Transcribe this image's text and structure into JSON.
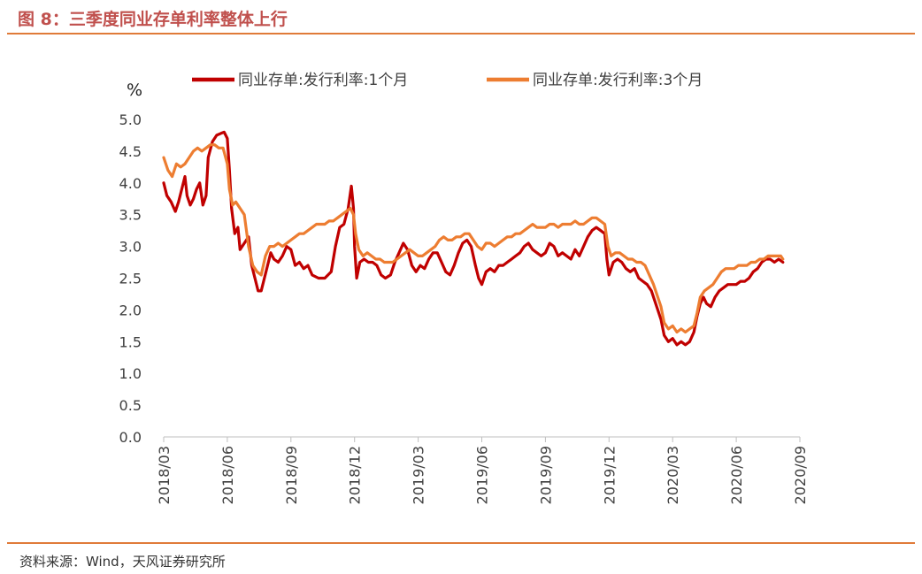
{
  "figure": {
    "title": "图 8：三季度同业存单利率整体上行",
    "source": "资料来源：Wind，天风证券研究所"
  },
  "chart_data": {
    "type": "line",
    "title": "三季度同业存单利率整体上行",
    "ylabel": "%",
    "xlabel": "",
    "ylim": [
      0,
      5
    ],
    "yticks": [
      "0.0",
      "0.5",
      "1.0",
      "1.5",
      "2.0",
      "2.5",
      "3.0",
      "3.5",
      "4.0",
      "4.5",
      "5.0"
    ],
    "xlim": [
      0,
      30
    ],
    "xticks": [
      "2018/03",
      "2018/06",
      "2018/09",
      "2018/12",
      "2019/03",
      "2019/06",
      "2019/09",
      "2019/12",
      "2020/03",
      "2020/06",
      "2020/09"
    ],
    "legend_position": "top",
    "series": [
      {
        "name": "同业存单:发行利率:1个月",
        "color": "#c00000",
        "points": [
          [
            0.0,
            4.0
          ],
          [
            0.15,
            3.8
          ],
          [
            0.35,
            3.7
          ],
          [
            0.55,
            3.55
          ],
          [
            0.7,
            3.7
          ],
          [
            0.85,
            3.9
          ],
          [
            1.0,
            4.1
          ],
          [
            1.1,
            3.8
          ],
          [
            1.25,
            3.65
          ],
          [
            1.4,
            3.75
          ],
          [
            1.55,
            3.9
          ],
          [
            1.7,
            4.0
          ],
          [
            1.85,
            3.65
          ],
          [
            2.0,
            3.8
          ],
          [
            2.1,
            4.4
          ],
          [
            2.3,
            4.65
          ],
          [
            2.5,
            4.75
          ],
          [
            2.7,
            4.78
          ],
          [
            2.85,
            4.8
          ],
          [
            3.0,
            4.7
          ],
          [
            3.1,
            4.2
          ],
          [
            3.2,
            3.6
          ],
          [
            3.35,
            3.2
          ],
          [
            3.5,
            3.3
          ],
          [
            3.6,
            2.95
          ],
          [
            3.8,
            3.05
          ],
          [
            4.0,
            3.15
          ],
          [
            4.15,
            2.7
          ],
          [
            4.3,
            2.5
          ],
          [
            4.45,
            2.3
          ],
          [
            4.6,
            2.3
          ],
          [
            4.75,
            2.5
          ],
          [
            4.9,
            2.7
          ],
          [
            5.05,
            2.9
          ],
          [
            5.2,
            2.8
          ],
          [
            5.4,
            2.75
          ],
          [
            5.6,
            2.85
          ],
          [
            5.8,
            3.0
          ],
          [
            6.0,
            2.95
          ],
          [
            6.2,
            2.7
          ],
          [
            6.4,
            2.75
          ],
          [
            6.6,
            2.65
          ],
          [
            6.8,
            2.7
          ],
          [
            7.0,
            2.55
          ],
          [
            7.3,
            2.5
          ],
          [
            7.6,
            2.5
          ],
          [
            7.9,
            2.6
          ],
          [
            8.1,
            3.0
          ],
          [
            8.3,
            3.3
          ],
          [
            8.5,
            3.35
          ],
          [
            8.7,
            3.6
          ],
          [
            8.85,
            3.95
          ],
          [
            8.95,
            3.6
          ],
          [
            9.0,
            3.0
          ],
          [
            9.1,
            2.5
          ],
          [
            9.25,
            2.75
          ],
          [
            9.45,
            2.8
          ],
          [
            9.65,
            2.75
          ],
          [
            9.85,
            2.75
          ],
          [
            10.05,
            2.7
          ],
          [
            10.25,
            2.55
          ],
          [
            10.45,
            2.5
          ],
          [
            10.7,
            2.55
          ],
          [
            10.9,
            2.75
          ],
          [
            11.1,
            2.9
          ],
          [
            11.3,
            3.05
          ],
          [
            11.5,
            2.95
          ],
          [
            11.7,
            2.7
          ],
          [
            11.9,
            2.6
          ],
          [
            12.1,
            2.7
          ],
          [
            12.3,
            2.65
          ],
          [
            12.5,
            2.8
          ],
          [
            12.7,
            2.9
          ],
          [
            12.9,
            2.9
          ],
          [
            13.1,
            2.75
          ],
          [
            13.3,
            2.6
          ],
          [
            13.5,
            2.55
          ],
          [
            13.7,
            2.7
          ],
          [
            13.9,
            2.9
          ],
          [
            14.1,
            3.05
          ],
          [
            14.3,
            3.1
          ],
          [
            14.5,
            3.0
          ],
          [
            14.7,
            2.7
          ],
          [
            14.85,
            2.5
          ],
          [
            15.0,
            2.4
          ],
          [
            15.2,
            2.6
          ],
          [
            15.4,
            2.65
          ],
          [
            15.6,
            2.6
          ],
          [
            15.8,
            2.7
          ],
          [
            16.0,
            2.7
          ],
          [
            16.2,
            2.75
          ],
          [
            16.4,
            2.8
          ],
          [
            16.6,
            2.85
          ],
          [
            16.8,
            2.9
          ],
          [
            17.0,
            3.0
          ],
          [
            17.2,
            3.05
          ],
          [
            17.4,
            2.95
          ],
          [
            17.6,
            2.9
          ],
          [
            17.8,
            2.85
          ],
          [
            18.0,
            2.9
          ],
          [
            18.2,
            3.05
          ],
          [
            18.4,
            3.0
          ],
          [
            18.6,
            2.85
          ],
          [
            18.8,
            2.9
          ],
          [
            19.0,
            2.85
          ],
          [
            19.2,
            2.8
          ],
          [
            19.4,
            2.95
          ],
          [
            19.6,
            2.85
          ],
          [
            19.8,
            3.0
          ],
          [
            20.0,
            3.15
          ],
          [
            20.2,
            3.25
          ],
          [
            20.4,
            3.3
          ],
          [
            20.6,
            3.25
          ],
          [
            20.8,
            3.2
          ],
          [
            20.9,
            2.8
          ],
          [
            21.0,
            2.55
          ],
          [
            21.2,
            2.75
          ],
          [
            21.4,
            2.8
          ],
          [
            21.6,
            2.75
          ],
          [
            21.8,
            2.65
          ],
          [
            22.0,
            2.6
          ],
          [
            22.2,
            2.65
          ],
          [
            22.4,
            2.5
          ],
          [
            22.6,
            2.45
          ],
          [
            22.8,
            2.4
          ],
          [
            23.0,
            2.3
          ],
          [
            23.15,
            2.15
          ],
          [
            23.3,
            2.0
          ],
          [
            23.45,
            1.85
          ],
          [
            23.6,
            1.6
          ],
          [
            23.8,
            1.5
          ],
          [
            24.0,
            1.55
          ],
          [
            24.2,
            1.45
          ],
          [
            24.4,
            1.5
          ],
          [
            24.6,
            1.45
          ],
          [
            24.8,
            1.5
          ],
          [
            25.0,
            1.65
          ],
          [
            25.15,
            1.9
          ],
          [
            25.3,
            2.1
          ],
          [
            25.45,
            2.2
          ],
          [
            25.6,
            2.1
          ],
          [
            25.8,
            2.05
          ],
          [
            26.0,
            2.2
          ],
          [
            26.2,
            2.3
          ],
          [
            26.4,
            2.35
          ],
          [
            26.6,
            2.4
          ],
          [
            26.8,
            2.4
          ],
          [
            27.0,
            2.4
          ],
          [
            27.2,
            2.45
          ],
          [
            27.4,
            2.45
          ],
          [
            27.6,
            2.5
          ],
          [
            27.8,
            2.6
          ],
          [
            28.0,
            2.65
          ],
          [
            28.2,
            2.75
          ],
          [
            28.4,
            2.8
          ],
          [
            28.6,
            2.8
          ],
          [
            28.8,
            2.75
          ],
          [
            29.0,
            2.8
          ],
          [
            29.2,
            2.75
          ]
        ]
      },
      {
        "name": "同业存单:发行利率:3个月",
        "color": "#ed7d31",
        "points": [
          [
            0.0,
            4.4
          ],
          [
            0.2,
            4.2
          ],
          [
            0.4,
            4.1
          ],
          [
            0.6,
            4.3
          ],
          [
            0.8,
            4.25
          ],
          [
            1.0,
            4.3
          ],
          [
            1.2,
            4.4
          ],
          [
            1.4,
            4.5
          ],
          [
            1.6,
            4.55
          ],
          [
            1.8,
            4.5
          ],
          [
            2.0,
            4.55
          ],
          [
            2.2,
            4.6
          ],
          [
            2.4,
            4.6
          ],
          [
            2.6,
            4.55
          ],
          [
            2.8,
            4.55
          ],
          [
            3.0,
            4.3
          ],
          [
            3.1,
            3.9
          ],
          [
            3.25,
            3.65
          ],
          [
            3.4,
            3.7
          ],
          [
            3.6,
            3.6
          ],
          [
            3.8,
            3.5
          ],
          [
            4.0,
            3.0
          ],
          [
            4.2,
            2.7
          ],
          [
            4.4,
            2.6
          ],
          [
            4.6,
            2.55
          ],
          [
            4.8,
            2.85
          ],
          [
            5.0,
            3.0
          ],
          [
            5.2,
            3.0
          ],
          [
            5.4,
            3.05
          ],
          [
            5.6,
            3.0
          ],
          [
            5.8,
            3.05
          ],
          [
            6.0,
            3.1
          ],
          [
            6.2,
            3.15
          ],
          [
            6.4,
            3.2
          ],
          [
            6.6,
            3.2
          ],
          [
            6.8,
            3.25
          ],
          [
            7.0,
            3.3
          ],
          [
            7.2,
            3.35
          ],
          [
            7.4,
            3.35
          ],
          [
            7.6,
            3.35
          ],
          [
            7.8,
            3.4
          ],
          [
            8.0,
            3.4
          ],
          [
            8.2,
            3.45
          ],
          [
            8.4,
            3.5
          ],
          [
            8.6,
            3.55
          ],
          [
            8.8,
            3.6
          ],
          [
            8.95,
            3.5
          ],
          [
            9.05,
            3.2
          ],
          [
            9.2,
            2.95
          ],
          [
            9.4,
            2.85
          ],
          [
            9.6,
            2.9
          ],
          [
            9.8,
            2.85
          ],
          [
            10.0,
            2.8
          ],
          [
            10.2,
            2.8
          ],
          [
            10.4,
            2.75
          ],
          [
            10.6,
            2.75
          ],
          [
            10.8,
            2.75
          ],
          [
            11.0,
            2.8
          ],
          [
            11.2,
            2.85
          ],
          [
            11.4,
            2.9
          ],
          [
            11.6,
            2.95
          ],
          [
            11.8,
            2.9
          ],
          [
            12.0,
            2.85
          ],
          [
            12.2,
            2.85
          ],
          [
            12.4,
            2.9
          ],
          [
            12.6,
            2.95
          ],
          [
            12.8,
            3.0
          ],
          [
            13.0,
            3.1
          ],
          [
            13.2,
            3.15
          ],
          [
            13.4,
            3.1
          ],
          [
            13.6,
            3.1
          ],
          [
            13.8,
            3.15
          ],
          [
            14.0,
            3.15
          ],
          [
            14.2,
            3.2
          ],
          [
            14.4,
            3.2
          ],
          [
            14.6,
            3.1
          ],
          [
            14.8,
            3.0
          ],
          [
            15.0,
            2.95
          ],
          [
            15.2,
            3.05
          ],
          [
            15.4,
            3.05
          ],
          [
            15.6,
            3.0
          ],
          [
            15.8,
            3.05
          ],
          [
            16.0,
            3.1
          ],
          [
            16.2,
            3.15
          ],
          [
            16.4,
            3.15
          ],
          [
            16.6,
            3.2
          ],
          [
            16.8,
            3.2
          ],
          [
            17.0,
            3.25
          ],
          [
            17.2,
            3.3
          ],
          [
            17.4,
            3.35
          ],
          [
            17.6,
            3.3
          ],
          [
            17.8,
            3.3
          ],
          [
            18.0,
            3.3
          ],
          [
            18.2,
            3.35
          ],
          [
            18.4,
            3.35
          ],
          [
            18.6,
            3.3
          ],
          [
            18.8,
            3.35
          ],
          [
            19.0,
            3.35
          ],
          [
            19.2,
            3.35
          ],
          [
            19.4,
            3.4
          ],
          [
            19.6,
            3.35
          ],
          [
            19.8,
            3.35
          ],
          [
            20.0,
            3.4
          ],
          [
            20.2,
            3.45
          ],
          [
            20.4,
            3.45
          ],
          [
            20.6,
            3.4
          ],
          [
            20.8,
            3.35
          ],
          [
            20.95,
            3.0
          ],
          [
            21.1,
            2.85
          ],
          [
            21.3,
            2.9
          ],
          [
            21.5,
            2.9
          ],
          [
            21.7,
            2.85
          ],
          [
            21.9,
            2.8
          ],
          [
            22.1,
            2.8
          ],
          [
            22.3,
            2.75
          ],
          [
            22.5,
            2.75
          ],
          [
            22.7,
            2.7
          ],
          [
            22.9,
            2.55
          ],
          [
            23.1,
            2.4
          ],
          [
            23.3,
            2.2
          ],
          [
            23.45,
            2.05
          ],
          [
            23.6,
            1.8
          ],
          [
            23.8,
            1.7
          ],
          [
            24.0,
            1.75
          ],
          [
            24.2,
            1.65
          ],
          [
            24.4,
            1.7
          ],
          [
            24.6,
            1.65
          ],
          [
            24.8,
            1.7
          ],
          [
            25.0,
            1.75
          ],
          [
            25.15,
            1.95
          ],
          [
            25.3,
            2.2
          ],
          [
            25.5,
            2.3
          ],
          [
            25.7,
            2.35
          ],
          [
            25.9,
            2.4
          ],
          [
            26.1,
            2.5
          ],
          [
            26.3,
            2.6
          ],
          [
            26.5,
            2.65
          ],
          [
            26.7,
            2.65
          ],
          [
            26.9,
            2.65
          ],
          [
            27.1,
            2.7
          ],
          [
            27.3,
            2.7
          ],
          [
            27.5,
            2.7
          ],
          [
            27.7,
            2.75
          ],
          [
            27.9,
            2.75
          ],
          [
            28.1,
            2.8
          ],
          [
            28.3,
            2.8
          ],
          [
            28.5,
            2.85
          ],
          [
            28.7,
            2.85
          ],
          [
            28.9,
            2.85
          ],
          [
            29.1,
            2.85
          ],
          [
            29.2,
            2.8
          ]
        ]
      }
    ]
  }
}
